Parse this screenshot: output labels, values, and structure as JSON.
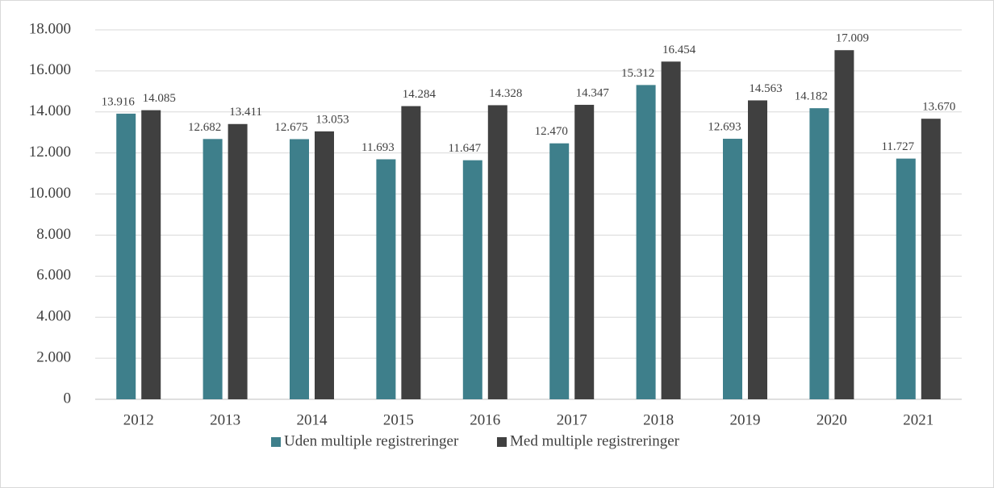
{
  "chart_data": {
    "type": "bar",
    "categories": [
      "2012",
      "2013",
      "2014",
      "2015",
      "2016",
      "2017",
      "2018",
      "2019",
      "2020",
      "2021"
    ],
    "series": [
      {
        "name": "Uden multiple registreringer",
        "color": "#3e7f8b",
        "values": [
          13916,
          12682,
          12675,
          11693,
          11647,
          12470,
          15312,
          12693,
          14182,
          11727
        ],
        "value_labels": [
          "13.916",
          "12.682",
          "12.675",
          "11.693",
          "11.647",
          "12.470",
          "15.312",
          "12.693",
          "14.182",
          "11.727"
        ]
      },
      {
        "name": "Med multiple registreringer",
        "color": "#404040",
        "values": [
          14085,
          13411,
          13053,
          14284,
          14328,
          14347,
          16454,
          14563,
          17009,
          13670
        ],
        "value_labels": [
          "14.085",
          "13.411",
          "13.053",
          "14.284",
          "14.328",
          "14.347",
          "16.454",
          "14.563",
          "17.009",
          "13.670"
        ]
      }
    ],
    "ylim": [
      0,
      18000
    ],
    "yticks": [
      0,
      {
        "value": 2000,
        "label": "2.000"
      },
      {
        "value": 4000,
        "label": "4.000"
      },
      {
        "value": 6000,
        "label": "6.000"
      },
      {
        "value": 8000,
        "label": "8.000"
      },
      {
        "value": 10000,
        "label": "10.000"
      },
      {
        "value": 12000,
        "label": "12.000"
      },
      {
        "value": 14000,
        "label": "14.000"
      },
      {
        "value": 16000,
        "label": "16.000"
      },
      {
        "value": 18000,
        "label": "18.000"
      }
    ],
    "grid": true,
    "legend": "bottom"
  }
}
